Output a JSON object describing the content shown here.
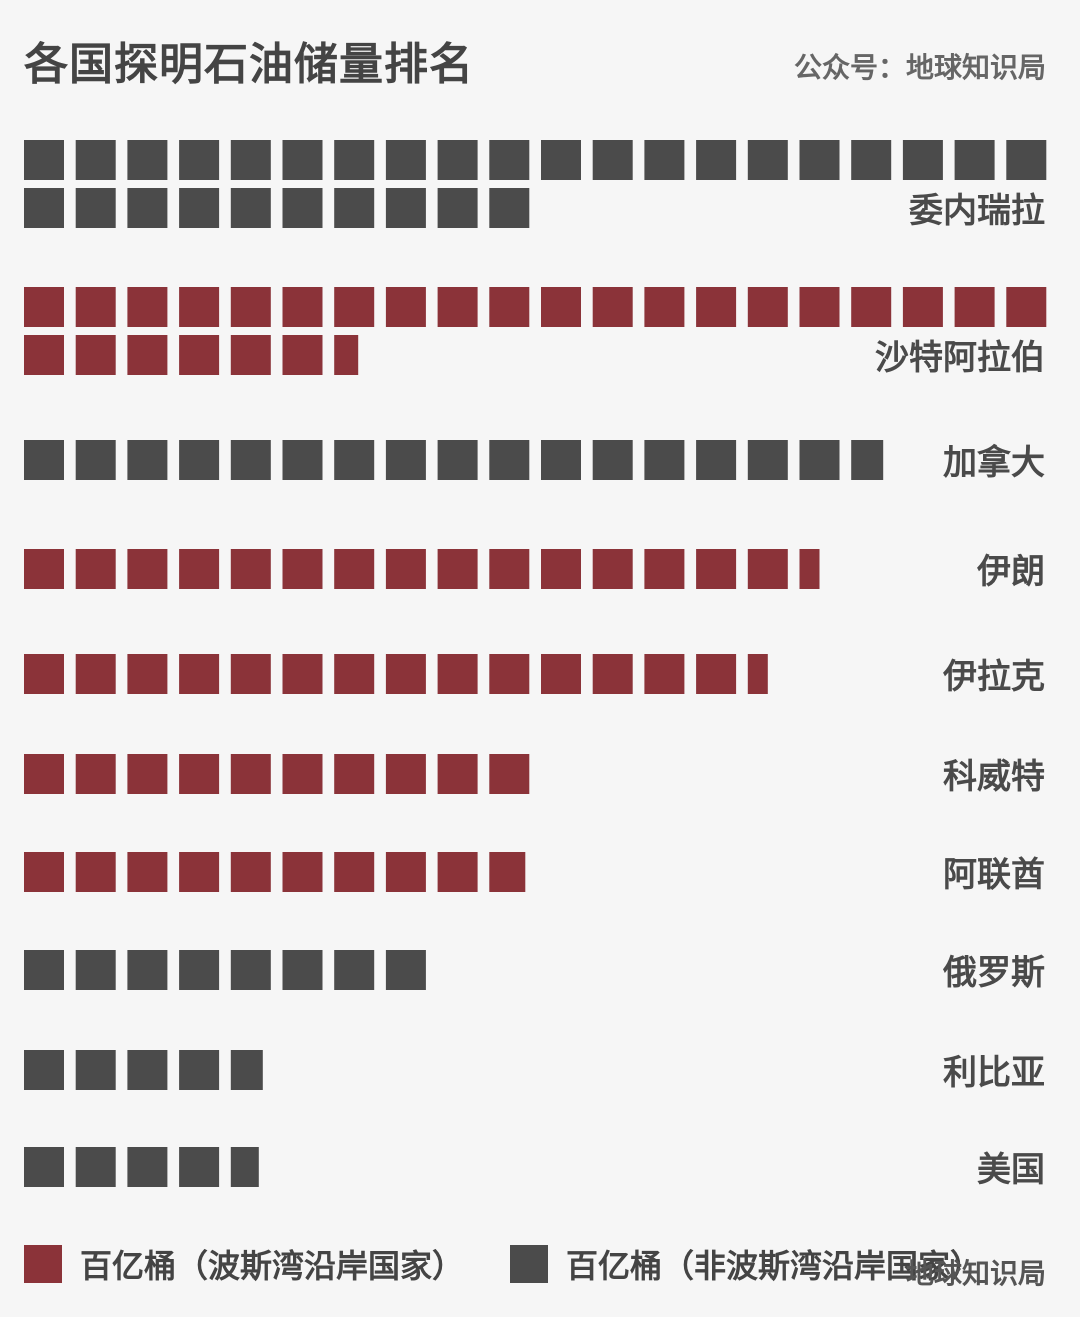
{
  "title": "各国探明石油储量排名",
  "source": "公众号：地球知识局",
  "watermark": "地球知识局",
  "colors": {
    "persian_gulf": "#8b3339",
    "non_persian_gulf": "#4b4b4b",
    "background": "#f6f6f6"
  },
  "legend": [
    {
      "label": "百亿桶（波斯湾沿岸国家）",
      "color": "#8b3339"
    },
    {
      "label": "百亿桶（非波斯湾沿岸国家）",
      "color": "#4b4b4b"
    }
  ],
  "chart_data": {
    "type": "bar",
    "title": "各国探明石油储量排名",
    "unit": "百亿桶",
    "categories": [
      "委内瑞拉",
      "沙特阿拉伯",
      "加拿大",
      "伊朗",
      "伊拉克",
      "科威特",
      "阿联酋",
      "俄罗斯",
      "利比亚",
      "美国"
    ],
    "values": [
      30.0,
      26.6,
      16.8,
      15.5,
      14.5,
      10.0,
      9.9,
      8.0,
      4.8,
      4.7
    ],
    "persian_gulf": [
      false,
      true,
      false,
      true,
      true,
      true,
      true,
      false,
      false,
      false
    ]
  }
}
